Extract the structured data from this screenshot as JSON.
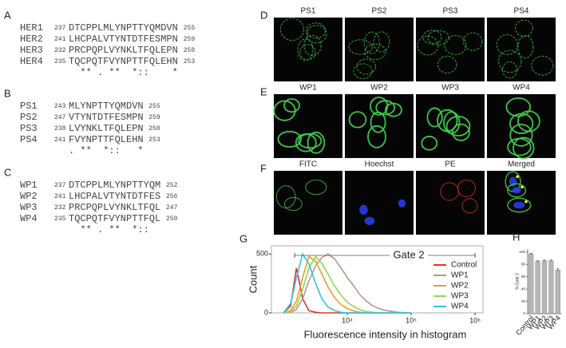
{
  "alignments": [
    {
      "label": "A",
      "rows": [
        {
          "name": "HER1",
          "start": 237,
          "sequence": "DTCPPLMLYNPTTYQMDVN",
          "end": 255
        },
        {
          "name": "HER2",
          "start": 241,
          "sequence": "LHCPALVTYNTDTFESMPN",
          "end": 259
        },
        {
          "name": "HER3",
          "start": 232,
          "sequence": "PRCPQPLVYNKLTFQLEPN",
          "end": 250
        },
        {
          "name": "HER4",
          "start": 235,
          "sequence": "TQCPQTFVYNPTTFQLEHN",
          "end": 253
        }
      ],
      "consensus": "  ** . **  *::    *"
    },
    {
      "label": "B",
      "rows": [
        {
          "name": "PS1",
          "start": 243,
          "sequence": "MLYNPTTYQMDVN",
          "end": 255
        },
        {
          "name": "PS2",
          "start": 247,
          "sequence": "VTYNTDTFESMPN",
          "end": 259
        },
        {
          "name": "PS3",
          "start": 238,
          "sequence": "LVYNKLTFQLEPN",
          "end": 250
        },
        {
          "name": "PS4",
          "start": 241,
          "sequence": "FVYNPTTFQLEHN",
          "end": 253
        }
      ],
      "consensus": ". **  *::   *"
    },
    {
      "label": "C",
      "rows": [
        {
          "name": "WP1",
          "start": 237,
          "sequence": "DTCPPLMLYNPTTYQM",
          "end": 252
        },
        {
          "name": "WP2",
          "start": 241,
          "sequence": "LHCPALVTYNTDTFES",
          "end": 256
        },
        {
          "name": "WP3",
          "start": 232,
          "sequence": "PRCPQPLVYNKLTFQL",
          "end": 247
        },
        {
          "name": "WP4",
          "start": 235,
          "sequence": "TQCPQTFVYNPTTFQL",
          "end": 250
        }
      ],
      "consensus": "  ** . **  *::"
    }
  ],
  "images": [
    {
      "label": "D",
      "panels": [
        "PS1",
        "PS2",
        "PS3",
        "PS4"
      ]
    },
    {
      "label": "E",
      "panels": [
        "WP1",
        "WP2",
        "WP3",
        "WP4"
      ]
    },
    {
      "label": "F",
      "panels": [
        "FITC",
        "Hoechst",
        "PE",
        "Merged"
      ]
    }
  ],
  "chart_data": [
    {
      "type": "line",
      "label": "G",
      "ylabel": "Count",
      "xlabel": "Fluorescence intensity in histogram",
      "log_x": true,
      "legend": "upper right",
      "xlim": [
        650,
        1330000
      ],
      "xticks": [
        {
          "value": 10000,
          "label": "10⁴"
        },
        {
          "value": 100000,
          "label": "10⁵"
        },
        {
          "value": 1000000,
          "label": "10⁶"
        }
      ],
      "ylim": [
        0,
        570
      ],
      "yticks": [
        0,
        500
      ],
      "gate": {
        "label": "Gate 2",
        "range": [
          1500,
          1000000
        ]
      },
      "x": [
        1000,
        1300,
        1600,
        2000,
        2500,
        3200,
        4000,
        5000,
        6300,
        8000,
        10000,
        13000,
        16000,
        20000,
        25000,
        32000,
        40000,
        63000,
        100000
      ],
      "series": [
        {
          "name": "Control",
          "color": "#e8302a",
          "values": [
            0,
            60,
            380,
            120,
            20,
            5,
            0,
            0,
            0,
            0,
            0,
            0,
            0,
            0,
            0,
            0,
            0,
            0,
            0
          ]
        },
        {
          "name": "WP1",
          "color": "#b99393",
          "values": [
            0,
            5,
            30,
            120,
            270,
            400,
            470,
            500,
            460,
            380,
            300,
            220,
            150,
            100,
            60,
            35,
            20,
            5,
            0
          ]
        },
        {
          "name": "WP2",
          "color": "#f39a2e",
          "values": [
            0,
            20,
            100,
            300,
            480,
            440,
            330,
            220,
            130,
            70,
            35,
            15,
            5,
            0,
            0,
            0,
            0,
            0,
            0
          ]
        },
        {
          "name": "WP3",
          "color": "#8ed84e",
          "values": [
            0,
            10,
            60,
            200,
            380,
            480,
            420,
            330,
            230,
            150,
            90,
            50,
            25,
            10,
            5,
            0,
            0,
            0,
            0
          ]
        },
        {
          "name": "WP4",
          "color": "#2fc3e8",
          "values": [
            0,
            80,
            300,
            500,
            420,
            250,
            120,
            50,
            20,
            5,
            0,
            0,
            0,
            0,
            0,
            0,
            0,
            0,
            0
          ]
        }
      ]
    },
    {
      "type": "bar",
      "label": "H",
      "ylabel": "% Gate 2",
      "color": "#b5b5b5",
      "categories": [
        "Control",
        "WP1",
        "WP2",
        "WP3",
        "WP4"
      ],
      "values": [
        97,
        85,
        86,
        86,
        71
      ],
      "errors": [
        1,
        1,
        1,
        1,
        2
      ],
      "ylim": [
        0,
        105
      ],
      "yticks": [
        0,
        20,
        40,
        60,
        80,
        100
      ]
    }
  ]
}
